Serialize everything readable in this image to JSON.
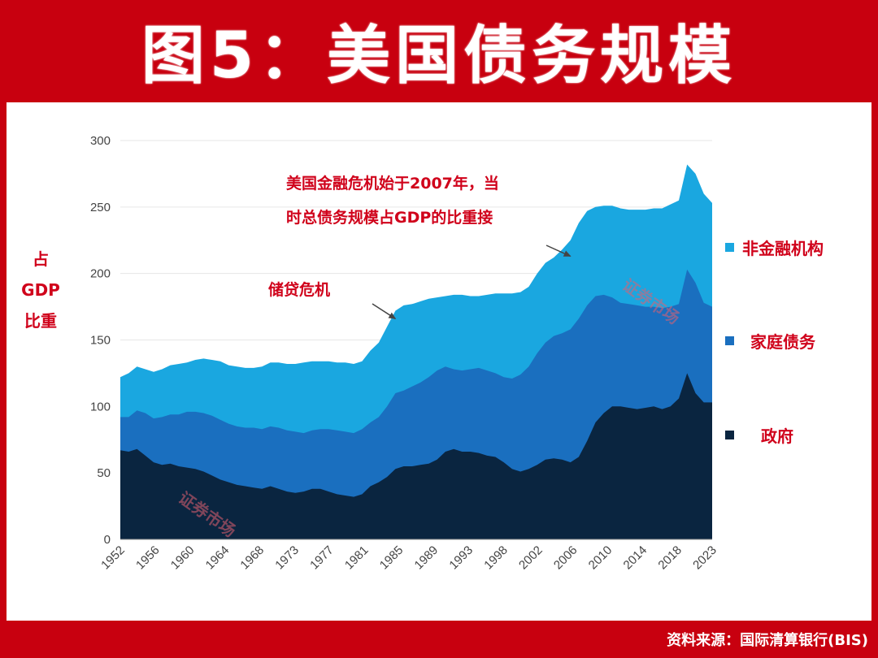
{
  "title": "图5：美国债务规模",
  "source": "资料来源：国际清算银行(BIS)",
  "watermark": "证券市场",
  "chart_data": {
    "type": "area",
    "stacked": true,
    "ylabel_lines": [
      "占",
      "GDP",
      "比重"
    ],
    "ylim": [
      0,
      300
    ],
    "yticks": [
      0,
      50,
      100,
      150,
      200,
      250,
      300
    ],
    "xlim": [
      1952,
      2023
    ],
    "xtick_labels": [
      "1952",
      "1956",
      "1960",
      "1964",
      "1968",
      "1973",
      "1977",
      "1981",
      "1985",
      "1989",
      "1993",
      "1998",
      "2002",
      "2006",
      "2010",
      "2014",
      "2018",
      "2023"
    ],
    "grid": "horizontal",
    "legend_position": "right",
    "x": [
      1952,
      1953,
      1954,
      1955,
      1956,
      1957,
      1958,
      1959,
      1960,
      1961,
      1962,
      1963,
      1964,
      1965,
      1966,
      1967,
      1968,
      1969,
      1970,
      1971,
      1972,
      1973,
      1974,
      1975,
      1976,
      1977,
      1978,
      1979,
      1980,
      1981,
      1982,
      1983,
      1984,
      1985,
      1986,
      1987,
      1988,
      1989,
      1990,
      1991,
      1992,
      1993,
      1994,
      1995,
      1996,
      1997,
      1998,
      1999,
      2000,
      2001,
      2002,
      2003,
      2004,
      2005,
      2006,
      2007,
      2008,
      2009,
      2010,
      2011,
      2012,
      2013,
      2014,
      2015,
      2016,
      2017,
      2018,
      2019,
      2020,
      2021,
      2022,
      2023
    ],
    "series": [
      {
        "name": "政府",
        "color": "#0a2540",
        "values": [
          67,
          66,
          68,
          63,
          58,
          56,
          57,
          55,
          54,
          53,
          51,
          48,
          45,
          43,
          41,
          40,
          39,
          38,
          40,
          38,
          36,
          35,
          36,
          38,
          38,
          36,
          34,
          33,
          32,
          34,
          40,
          43,
          47,
          53,
          55,
          55,
          56,
          57,
          60,
          66,
          68,
          66,
          66,
          65,
          63,
          62,
          58,
          53,
          51,
          53,
          56,
          60,
          61,
          60,
          58,
          62,
          74,
          88,
          95,
          100,
          100,
          99,
          98,
          99,
          100,
          98,
          100,
          106,
          125,
          110,
          103,
          103
        ]
      },
      {
        "name": "家庭债务",
        "color": "#1a6fbf",
        "values": [
          92,
          92,
          97,
          95,
          91,
          92,
          94,
          94,
          96,
          96,
          95,
          93,
          90,
          87,
          85,
          84,
          84,
          83,
          85,
          84,
          82,
          81,
          80,
          82,
          83,
          83,
          82,
          81,
          80,
          83,
          88,
          92,
          100,
          110,
          112,
          115,
          118,
          122,
          127,
          130,
          128,
          127,
          128,
          129,
          127,
          125,
          122,
          121,
          124,
          130,
          140,
          148,
          153,
          155,
          158,
          166,
          176,
          183,
          184,
          182,
          178,
          177,
          176,
          175,
          175,
          174,
          175,
          177,
          203,
          193,
          178,
          175
        ]
      },
      {
        "name": "非金融机构",
        "color": "#1aa7e0",
        "values": [
          122,
          125,
          130,
          128,
          126,
          128,
          131,
          132,
          133,
          135,
          136,
          135,
          134,
          131,
          130,
          129,
          129,
          130,
          133,
          133,
          132,
          132,
          133,
          134,
          134,
          134,
          133,
          133,
          132,
          134,
          142,
          148,
          160,
          172,
          176,
          177,
          179,
          181,
          182,
          183,
          184,
          184,
          183,
          183,
          184,
          185,
          185,
          185,
          186,
          190,
          200,
          208,
          212,
          218,
          225,
          238,
          247,
          250,
          251,
          251,
          249,
          248,
          248,
          248,
          249,
          249,
          252,
          255,
          282,
          275,
          260,
          253
        ]
      }
    ],
    "annotations": [
      {
        "lines": [
          "储贷危机"
        ],
        "arrow_to": [
          1985,
          166
        ]
      },
      {
        "lines": [
          "美国金融危机始于2007年，当",
          "时总债务规模占GDP的比重接"
        ],
        "arrow_to": [
          2006,
          213
        ]
      }
    ]
  }
}
